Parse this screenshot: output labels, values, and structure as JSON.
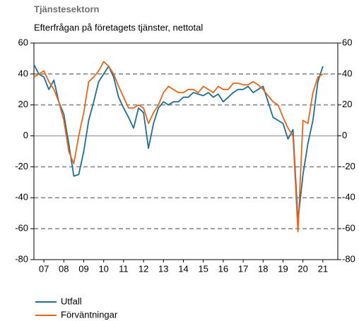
{
  "chart_data": {
    "type": "line",
    "title": "Tjänstesektorn",
    "subtitle": "Efterfrågan på företagets tjänster, nettotal",
    "x": [
      2007.0,
      2007.25,
      2007.5,
      2007.75,
      2008.0,
      2008.25,
      2008.5,
      2008.75,
      2009.0,
      2009.25,
      2009.5,
      2009.75,
      2010.0,
      2010.25,
      2010.5,
      2010.75,
      2011.0,
      2011.25,
      2011.5,
      2011.75,
      2012.0,
      2012.25,
      2012.5,
      2012.75,
      2013.0,
      2013.25,
      2013.5,
      2013.75,
      2014.0,
      2014.25,
      2014.5,
      2014.75,
      2015.0,
      2015.25,
      2015.5,
      2015.75,
      2016.0,
      2016.25,
      2016.5,
      2016.75,
      2017.0,
      2017.25,
      2017.5,
      2017.75,
      2018.0,
      2018.25,
      2018.5,
      2018.75,
      2019.0,
      2019.25,
      2019.5,
      2019.75,
      2020.0,
      2020.25,
      2020.5,
      2020.75,
      2021.0,
      2021.25,
      2021.5
    ],
    "series": [
      {
        "name": "Utfall",
        "color": "#1f6e91",
        "values": [
          46,
          40,
          38,
          30,
          36,
          22,
          14,
          -5,
          -26,
          -25,
          -10,
          10,
          22,
          35,
          40,
          45,
          38,
          25,
          18,
          12,
          5,
          18,
          15,
          -8,
          8,
          18,
          22,
          20,
          22,
          22,
          25,
          25,
          28,
          27,
          26,
          28,
          25,
          27,
          22,
          25,
          28,
          30,
          30,
          32,
          28,
          30,
          32,
          22,
          12,
          10,
          8,
          -2,
          4,
          -55,
          -25,
          -5,
          10,
          35,
          45
        ]
      },
      {
        "name": "Förväntningar",
        "color": "#e8661c",
        "values": [
          38,
          40,
          42,
          35,
          30,
          22,
          10,
          -10,
          -18,
          0,
          15,
          35,
          38,
          42,
          48,
          45,
          40,
          32,
          25,
          18,
          18,
          20,
          18,
          8,
          15,
          20,
          28,
          32,
          30,
          28,
          28,
          30,
          30,
          28,
          32,
          30,
          28,
          32,
          30,
          30,
          34,
          34,
          33,
          33,
          35,
          33,
          30,
          26,
          22,
          20,
          12,
          5,
          0,
          -62,
          10,
          8,
          28,
          38,
          40
        ]
      }
    ],
    "xlim": [
      2007.0,
      2022.25
    ],
    "xticks": [
      {
        "value": 2007.5,
        "label": "07"
      },
      {
        "value": 2008.5,
        "label": "08"
      },
      {
        "value": 2009.5,
        "label": "09"
      },
      {
        "value": 2010.5,
        "label": "10"
      },
      {
        "value": 2011.5,
        "label": "11"
      },
      {
        "value": 2012.5,
        "label": "12"
      },
      {
        "value": 2013.5,
        "label": "13"
      },
      {
        "value": 2014.5,
        "label": "14"
      },
      {
        "value": 2015.5,
        "label": "15"
      },
      {
        "value": 2016.5,
        "label": "16"
      },
      {
        "value": 2017.5,
        "label": "17"
      },
      {
        "value": 2018.5,
        "label": "18"
      },
      {
        "value": 2019.5,
        "label": "19"
      },
      {
        "value": 2020.5,
        "label": "20"
      },
      {
        "value": 2021.5,
        "label": "21"
      }
    ],
    "ylim": [
      -80,
      60
    ],
    "yticks": [
      -80,
      -60,
      -40,
      -20,
      0,
      20,
      40,
      60
    ],
    "grid": true,
    "mirror_y_axis": true,
    "legend": "bottom-left"
  }
}
